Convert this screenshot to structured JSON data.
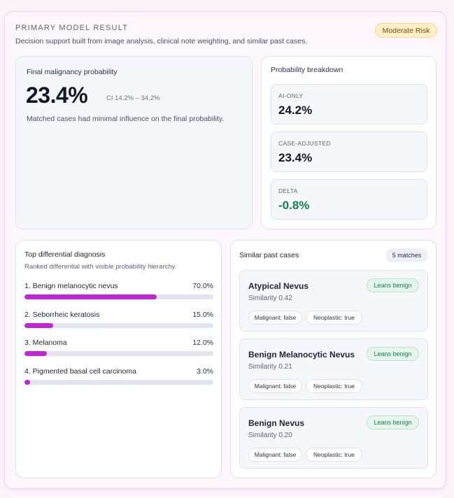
{
  "header": {
    "eyebrow": "PRIMARY MODEL RESULT",
    "subtitle": "Decision support built from image analysis, clinical note weighting, and similar past cases.",
    "risk_badge": "Moderate Risk"
  },
  "final": {
    "label": "Final malignancy probability",
    "value": "23.4%",
    "ci": "CI 14.2% – 34.2%",
    "note": "Matched cases had minimal influence on the final probability."
  },
  "breakdown": {
    "title": "Probability breakdown",
    "items": [
      {
        "label": "AI-ONLY",
        "value": "24.2%"
      },
      {
        "label": "CASE-ADJUSTED",
        "value": "23.4%"
      },
      {
        "label": "DELTA",
        "value": "-0.8%"
      }
    ]
  },
  "differential": {
    "title": "Top differential diagnosis",
    "subtitle": "Ranked differential with visible probability hierarchy.",
    "items": [
      {
        "name": "1.  Benign melanocytic nevus",
        "pct": "70.0%",
        "value": 0.7
      },
      {
        "name": "2.  Seborrheic keratosis",
        "pct": "15.0%",
        "value": 0.15
      },
      {
        "name": "3.  Melanoma",
        "pct": "12.0%",
        "value": 0.12
      },
      {
        "name": "4.  Pigmented basal cell carcinoma",
        "pct": "3.0%",
        "value": 0.03
      }
    ]
  },
  "similar": {
    "title": "Similar past cases",
    "count": "5 matches",
    "cases": [
      {
        "name": "Atypical Nevus",
        "similarity": "Similarity 0.42",
        "lean": "Leans benign",
        "chip_a": "Malignant: false",
        "chip_b": "Neoplastic: true"
      },
      {
        "name": "Benign Melanocytic Nevus",
        "similarity": "Similarity 0.21",
        "lean": "Leans benign",
        "chip_a": "Malignant: false",
        "chip_b": "Neoplastic: true"
      },
      {
        "name": "Benign Nevus",
        "similarity": "Similarity 0.20",
        "lean": "Leans benign",
        "chip_a": "Malignant: false",
        "chip_b": "Neoplastic: true"
      }
    ]
  },
  "colors": {
    "accent_bar": "#c026d3",
    "delta_green": "#17804f",
    "risk_badge_bg": "#fdefc6"
  }
}
